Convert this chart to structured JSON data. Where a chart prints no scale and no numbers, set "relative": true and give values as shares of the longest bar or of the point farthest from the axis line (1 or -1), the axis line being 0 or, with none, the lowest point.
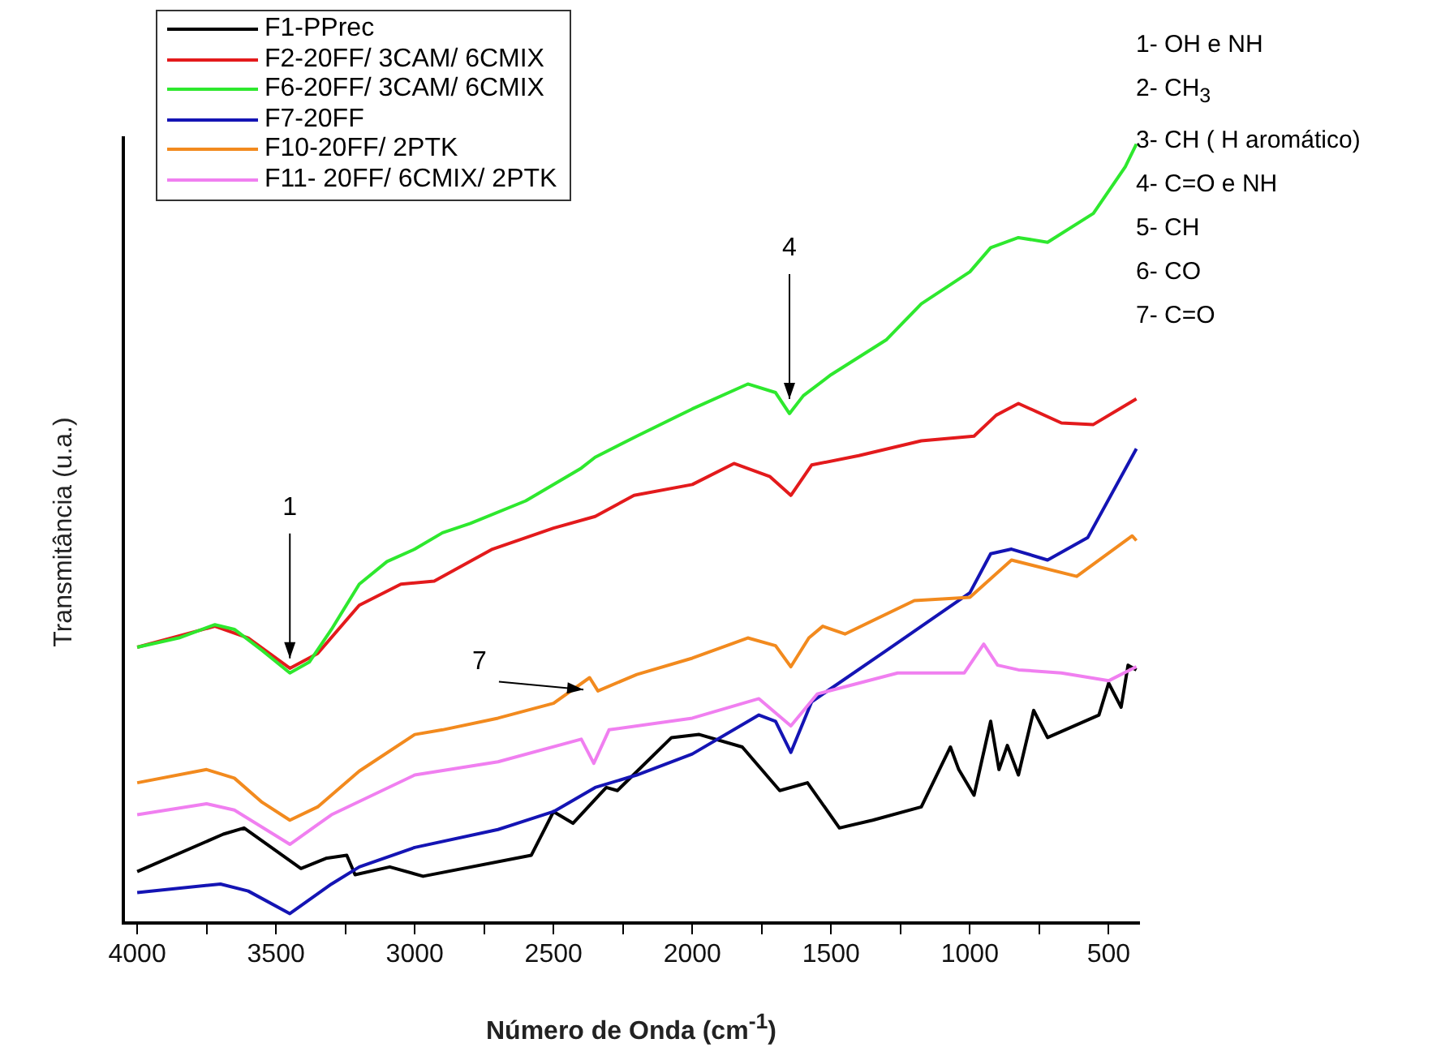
{
  "chart_data": {
    "type": "line",
    "relative": true,
    "xlabel": "Número de Onda  (cm$^{-1}$)",
    "ylabel": "Transmitância  (u.a.)",
    "xlim": [
      4050,
      390
    ],
    "xticks": [
      4000,
      {
        "value": 3750,
        "label": null
      },
      3500,
      {
        "value": 3250,
        "label": null
      },
      3000,
      {
        "value": 2750,
        "label": null
      },
      2500,
      {
        "value": 2250,
        "label": null
      },
      2000,
      {
        "value": 1750,
        "label": null
      },
      1500,
      {
        "value": 1250,
        "label": null
      },
      1000,
      {
        "value": 750,
        "label": null
      },
      500
    ],
    "grid": false,
    "legend": "top left",
    "marker": "none",
    "line_style": "solid",
    "series": [
      {
        "name": "F1-PPrec",
        "color": "#000000",
        "x": [
          4000,
          3690,
          3615,
          3410,
          3320,
          3245,
          3215,
          3090,
          2970,
          2580,
          2500,
          2430,
          2310,
          2270,
          2075,
          1975,
          1820,
          1685,
          1585,
          1470,
          1350,
          1175,
          1070,
          1040,
          985,
          925,
          895,
          865,
          825,
          770,
          720,
          535,
          500,
          455,
          430,
          400
        ],
        "values": [
          0.066,
          0.114,
          0.122,
          0.07,
          0.083,
          0.087,
          0.062,
          0.072,
          0.06,
          0.087,
          0.143,
          0.128,
          0.174,
          0.17,
          0.238,
          0.242,
          0.226,
          0.17,
          0.18,
          0.122,
          0.132,
          0.149,
          0.226,
          0.197,
          0.164,
          0.259,
          0.197,
          0.228,
          0.19,
          0.273,
          0.238,
          0.267,
          0.308,
          0.277,
          0.331,
          0.325
        ]
      },
      {
        "name": "F2-20FF/ 3CAM/ 6CMIX",
        "color": "#e31a1c",
        "x": [
          4000,
          3720,
          3600,
          3450,
          3350,
          3200,
          3050,
          2930,
          2720,
          2500,
          2350,
          2210,
          2000,
          1850,
          1720,
          1645,
          1570,
          1400,
          1175,
          985,
          905,
          825,
          670,
          555,
          400
        ],
        "values": [
          0.354,
          0.381,
          0.366,
          0.327,
          0.346,
          0.408,
          0.435,
          0.439,
          0.48,
          0.507,
          0.522,
          0.549,
          0.563,
          0.59,
          0.573,
          0.549,
          0.588,
          0.6,
          0.619,
          0.625,
          0.652,
          0.667,
          0.642,
          0.64,
          0.673
        ]
      },
      {
        "name": "F6-20FF/ 3CAM/ 6CMIX",
        "color": "#2ee82e",
        "x": [
          4000,
          3850,
          3720,
          3650,
          3550,
          3450,
          3380,
          3300,
          3200,
          3100,
          3000,
          2900,
          2800,
          2600,
          2400,
          2350,
          2200,
          2000,
          1800,
          1700,
          1650,
          1600,
          1500,
          1300,
          1175,
          1000,
          925,
          825,
          720,
          555,
          440,
          400
        ],
        "values": [
          0.354,
          0.366,
          0.383,
          0.377,
          0.35,
          0.321,
          0.335,
          0.377,
          0.435,
          0.464,
          0.48,
          0.501,
          0.513,
          0.542,
          0.584,
          0.598,
          0.625,
          0.66,
          0.692,
          0.681,
          0.654,
          0.677,
          0.704,
          0.749,
          0.795,
          0.836,
          0.867,
          0.88,
          0.874,
          0.911,
          0.971,
          1.0
        ]
      },
      {
        "name": "F7-20FF",
        "color": "#1414b4",
        "x": [
          4000,
          3700,
          3600,
          3450,
          3300,
          3200,
          3000,
          2700,
          2500,
          2350,
          2200,
          2000,
          1760,
          1700,
          1645,
          1570,
          1300,
          1000,
          925,
          850,
          720,
          575,
          400
        ],
        "values": [
          0.039,
          0.05,
          0.041,
          0.012,
          0.05,
          0.072,
          0.097,
          0.12,
          0.143,
          0.174,
          0.19,
          0.217,
          0.267,
          0.259,
          0.219,
          0.284,
          0.35,
          0.424,
          0.474,
          0.48,
          0.466,
          0.495,
          0.609
        ]
      },
      {
        "name": "F10-20FF/ 2PTK",
        "color": "#f28a1e",
        "x": [
          4000,
          3750,
          3650,
          3550,
          3450,
          3350,
          3200,
          3000,
          2900,
          2700,
          2500,
          2370,
          2340,
          2200,
          2000,
          1800,
          1700,
          1645,
          1580,
          1530,
          1450,
          1200,
          1000,
          850,
          615,
          415,
          400
        ],
        "values": [
          0.18,
          0.197,
          0.186,
          0.155,
          0.132,
          0.149,
          0.195,
          0.242,
          0.248,
          0.263,
          0.282,
          0.315,
          0.298,
          0.319,
          0.34,
          0.366,
          0.356,
          0.329,
          0.366,
          0.381,
          0.371,
          0.414,
          0.418,
          0.466,
          0.445,
          0.497,
          0.491
        ]
      },
      {
        "name": "F11- 20FF/ 6CMIX/ 2PTK",
        "color": "#f07ff0",
        "x": [
          4000,
          3750,
          3650,
          3450,
          3300,
          3000,
          2700,
          2400,
          2355,
          2300,
          2000,
          1760,
          1645,
          1550,
          1260,
          1020,
          950,
          900,
          825,
          670,
          500,
          400
        ],
        "values": [
          0.139,
          0.153,
          0.145,
          0.101,
          0.139,
          0.19,
          0.207,
          0.236,
          0.205,
          0.248,
          0.263,
          0.288,
          0.253,
          0.294,
          0.321,
          0.321,
          0.358,
          0.331,
          0.325,
          0.321,
          0.311,
          0.329
        ]
      }
    ],
    "annotations": [
      {
        "text": "1",
        "x": 3450,
        "y": 0.321
      },
      {
        "text": "4",
        "x": 1650,
        "y": 0.654
      },
      {
        "text": "7",
        "x": 2340,
        "y": 0.298
      },
      "1- OH e NH",
      "2- CH$_{3}$",
      "3- CH  ( H aromático)",
      "4- C=O e NH",
      "5- CH",
      "6- CO",
      "7- C=O"
    ]
  }
}
